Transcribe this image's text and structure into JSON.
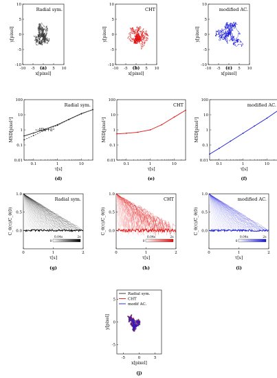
{
  "chart_data": [
    {
      "panel": "a",
      "panel_label": "(a)",
      "type": "scatter",
      "legend_label": "Radial sym.",
      "xlabel": "x[pixel]",
      "ylabel": "y[pixel]",
      "xlim": [
        -10,
        10
      ],
      "ylim": [
        -10,
        10
      ],
      "xticks": [
        -10,
        -5,
        0,
        5,
        10
      ],
      "yticks": [
        10,
        5,
        0,
        -5,
        -10
      ],
      "color": "#3a3a3a"
    },
    {
      "panel": "b",
      "panel_label": "(b)",
      "type": "scatter",
      "legend_label": "CHT",
      "xlabel": "x[pixel]",
      "ylabel": "y[pixel]",
      "xlim": [
        -10,
        10
      ],
      "ylim": [
        -10,
        10
      ],
      "xticks": [
        -10,
        -5,
        0,
        5,
        10
      ],
      "yticks": [
        10,
        5,
        0,
        -5,
        -10
      ],
      "color": "#e01010"
    },
    {
      "panel": "c",
      "panel_label": "(c)",
      "type": "scatter",
      "legend_label": "modified AC.",
      "xlabel": "x[pixel]",
      "ylabel": "y[pixel]",
      "xlim": [
        -10,
        10
      ],
      "ylim": [
        -10,
        10
      ],
      "xticks": [
        -10,
        -5,
        0,
        5,
        10
      ],
      "yticks": [
        10,
        5,
        0,
        -5,
        -10
      ],
      "color": "#1a1ad8"
    },
    {
      "panel": "d",
      "panel_label": "(d)",
      "type": "line",
      "scale": "log-log",
      "legend_label": "Radial sym.",
      "annotation": "~4Dτ+σ²",
      "xlabel": "τ[s]",
      "ylabel": "MSD[pixel²]",
      "xlim": [
        0.04,
        30
      ],
      "ylim": [
        0.01,
        100
      ],
      "xtick_labels": [
        "0.1",
        "1",
        "10"
      ],
      "ytick_labels": [
        "100",
        "10",
        "1",
        "0.1",
        "0.01"
      ],
      "series": [
        {
          "color": "#222222",
          "x": [
            0.04,
            0.1,
            0.3,
            1,
            3,
            10,
            30
          ],
          "y": [
            0.4,
            0.62,
            1.1,
            2.2,
            5,
            12,
            22
          ]
        },
        {
          "color": "#222222",
          "dashed": true,
          "x": [
            0.04,
            0.1,
            0.3,
            1,
            3,
            10,
            30
          ],
          "y": [
            0.22,
            0.42,
            0.95,
            2.0,
            4.8,
            11.5,
            22
          ]
        }
      ],
      "color": "#222222"
    },
    {
      "panel": "e",
      "panel_label": "(e)",
      "type": "line",
      "scale": "log-log",
      "legend_label": "CHT",
      "xlabel": "τ[s]",
      "ylabel": "MSD[pixel²]",
      "xlim": [
        0.04,
        30
      ],
      "ylim": [
        0.01,
        100
      ],
      "xtick_labels": [
        "0.1",
        "1",
        "10"
      ],
      "ytick_labels": [
        "100",
        "10",
        "1",
        "0.1",
        "0.01"
      ],
      "series": [
        {
          "color": "#e01010",
          "x": [
            0.04,
            0.1,
            0.3,
            1,
            3,
            10,
            30
          ],
          "y": [
            0.55,
            0.6,
            0.7,
            1.0,
            2.2,
            7,
            20
          ]
        }
      ],
      "color": "#e01010"
    },
    {
      "panel": "f",
      "panel_label": "(f)",
      "type": "line",
      "scale": "log-log",
      "legend_label": "modified AC.",
      "xlabel": "τ[s]",
      "ylabel": "MSD[pixel²]",
      "xlim": [
        0.04,
        30
      ],
      "ylim": [
        0.01,
        100
      ],
      "xtick_labels": [
        "0.1",
        "1",
        "10"
      ],
      "ytick_labels": [
        "100",
        "10",
        "1",
        "0.1",
        "0.01"
      ],
      "series": [
        {
          "color": "#1a1ad8",
          "x": [
            0.04,
            0.1,
            0.3,
            1,
            3,
            10,
            30
          ],
          "y": [
            0.025,
            0.06,
            0.18,
            0.6,
            1.8,
            6,
            20
          ]
        }
      ],
      "color": "#1a1ad8"
    },
    {
      "panel": "g",
      "panel_label": "(g)",
      "type": "line",
      "legend_label": "Radial sym.",
      "xlabel": "τ[s]",
      "ylabel": "C_θ(τ)/C_θ(0)",
      "xlim": [
        0,
        2
      ],
      "ylim": [
        -0.5,
        1
      ],
      "xticks": [
        0,
        1,
        2
      ],
      "yticks": [
        1,
        0.5,
        0
      ],
      "ytick_labels": [
        "1.0",
        "0.5",
        "0.0"
      ],
      "colorbar": {
        "start_label": "0.04s",
        "end_label": "2s",
        "zero_label": "0",
        "from": "#ffffff",
        "to": "#000000"
      },
      "color": "#222222"
    },
    {
      "panel": "h",
      "panel_label": "(h)",
      "type": "line",
      "legend_label": "CHT",
      "xlabel": "τ[s]",
      "ylabel": "C_θ(τ)/C_θ(0)",
      "xlim": [
        0,
        2
      ],
      "ylim": [
        -0.5,
        1
      ],
      "xticks": [
        0,
        1,
        2
      ],
      "yticks": [
        1,
        0.5,
        0
      ],
      "ytick_labels": [
        "1.0",
        "0.5",
        "0.0"
      ],
      "colorbar": {
        "start_label": "0.04s",
        "end_label": "2s",
        "zero_label": "0",
        "from": "#ffffff",
        "to": "#e01010"
      },
      "color": "#e01010"
    },
    {
      "panel": "i",
      "panel_label": "(i)",
      "type": "line",
      "legend_label": "modified AC.",
      "xlabel": "τ[s]",
      "ylabel": "C_θ(τ)/C_θ(0)",
      "xlim": [
        0,
        2
      ],
      "ylim": [
        -0.5,
        1
      ],
      "xticks": [
        0,
        1,
        2
      ],
      "yticks": [
        1,
        0.5,
        0
      ],
      "ytick_labels": [
        "1.0",
        "0.5",
        "0.0"
      ],
      "colorbar": {
        "start_label": "0.04s",
        "end_label": "2s",
        "zero_label": "0",
        "from": "#ffffff",
        "to": "#1a1ad8"
      },
      "color": "#1a1ad8"
    },
    {
      "panel": "j",
      "panel_label": "(j)",
      "type": "scatter",
      "xlabel": "x[pixel]",
      "ylabel": "y[pixel]",
      "xlim": [
        -7,
        7
      ],
      "ylim": [
        -7,
        7
      ],
      "xticks": [
        -5,
        0,
        5
      ],
      "yticks": [
        5,
        0,
        -5
      ],
      "legend": [
        {
          "label": "Radial sym.",
          "color": "#222222"
        },
        {
          "label": "CHT",
          "color": "#e01010"
        },
        {
          "label": "modif AC.",
          "color": "#1a1ad8"
        }
      ]
    }
  ]
}
